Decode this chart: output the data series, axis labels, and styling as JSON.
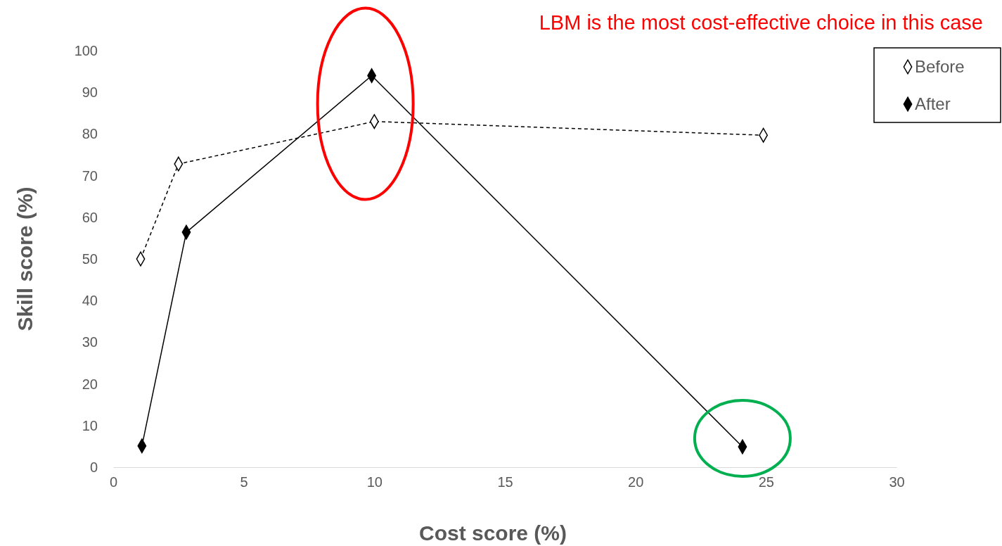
{
  "chart_data": {
    "type": "line",
    "xlabel": "Cost score (%)",
    "ylabel": "Skill score (%)",
    "xlim": [
      0,
      30
    ],
    "xticks": [
      0,
      5,
      10,
      15,
      20,
      25,
      30
    ],
    "ylim": [
      0,
      100
    ],
    "yticks": [
      0,
      10,
      20,
      30,
      40,
      50,
      60,
      70,
      80,
      90,
      100
    ],
    "grid": false,
    "legend": "top right",
    "marker": "diamond",
    "annotations": [
      "LBM is the most cost-effective choice in this case"
    ],
    "series": [
      {
        "name": "Before",
        "color": "#000000",
        "line_style": "dashed",
        "x": [
          1.05,
          2.5,
          10,
          24.9
        ],
        "values": [
          50,
          72.8,
          83,
          79.7
        ]
      },
      {
        "name": "After",
        "color": "#000000",
        "line_style": "solid",
        "x": [
          1.1,
          2.8,
          9.9,
          24.1
        ],
        "values": [
          5.1,
          56.4,
          94,
          4.9
        ]
      }
    ]
  }
}
